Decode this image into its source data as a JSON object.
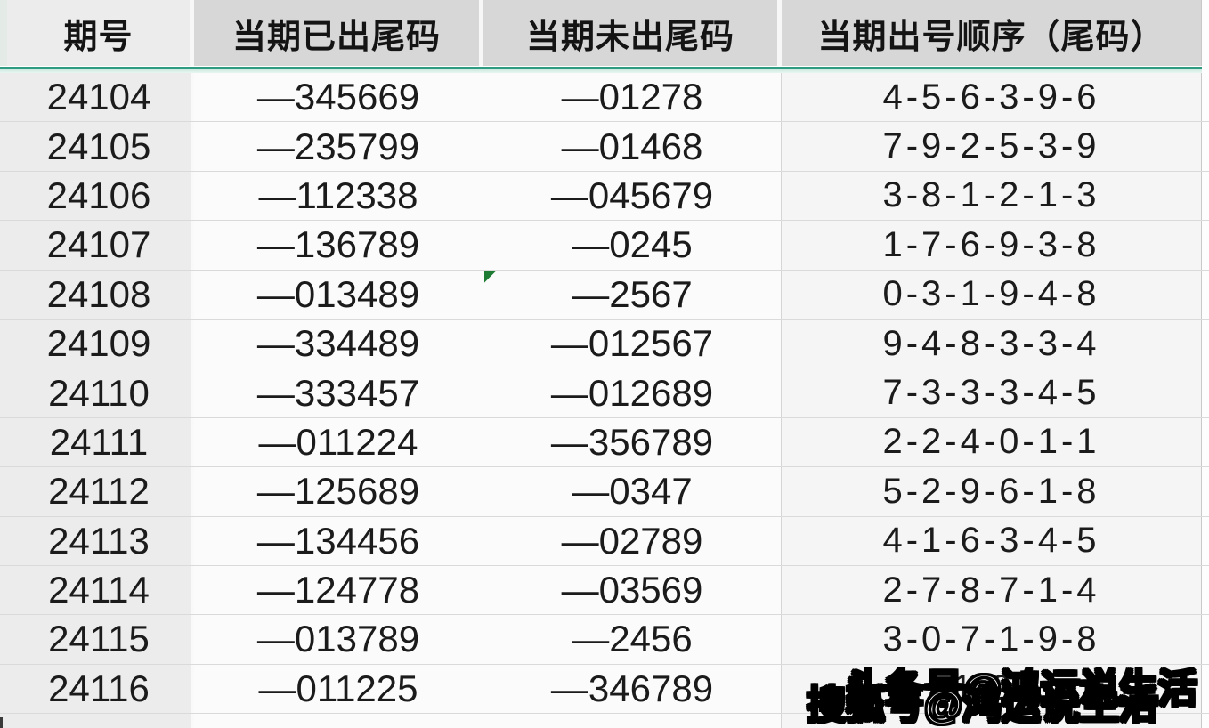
{
  "table": {
    "columns": [
      {
        "key": "period",
        "label": "期号"
      },
      {
        "key": "appeared",
        "label": "当期已出尾码"
      },
      {
        "key": "missing",
        "label": "当期未出尾码"
      },
      {
        "key": "order",
        "label": "当期出号顺序（尾码）"
      }
    ],
    "rows": [
      {
        "period": "24104",
        "appeared": "—345669",
        "missing": "—01278",
        "order": "4-5-6-3-9-6"
      },
      {
        "period": "24105",
        "appeared": "—235799",
        "missing": "—01468",
        "order": "7-9-2-5-3-9"
      },
      {
        "period": "24106",
        "appeared": "—112338",
        "missing": "—045679",
        "order": "3-8-1-2-1-3"
      },
      {
        "period": "24107",
        "appeared": "—136789",
        "missing": "—0245",
        "order": "1-7-6-9-3-8"
      },
      {
        "period": "24108",
        "appeared": "—013489",
        "missing": "—2567",
        "order": "0-3-1-9-4-8"
      },
      {
        "period": "24109",
        "appeared": "—334489",
        "missing": "—012567",
        "order": "9-4-8-3-3-4"
      },
      {
        "period": "24110",
        "appeared": "—333457",
        "missing": "—012689",
        "order": "7-3-3-3-4-5"
      },
      {
        "period": "24111",
        "appeared": "—011224",
        "missing": "—356789",
        "order": "2-2-4-0-1-1"
      },
      {
        "period": "24112",
        "appeared": "—125689",
        "missing": "—0347",
        "order": "5-2-9-6-1-8"
      },
      {
        "period": "24113",
        "appeared": "—134456",
        "missing": "—02789",
        "order": "4-1-6-3-4-5"
      },
      {
        "period": "24114",
        "appeared": "—124778",
        "missing": "—03569",
        "order": "2-7-8-7-1-4"
      },
      {
        "period": "24115",
        "appeared": "—013789",
        "missing": "—2456",
        "order": "3-0-7-1-9-8"
      },
      {
        "period": "24116",
        "appeared": "—011225",
        "missing": "—346789",
        "order": "1-2-"
      }
    ],
    "error_indicator": {
      "row_index": 4,
      "column": "missing"
    }
  },
  "watermark": {
    "front_text": "搜狐号@鸿运说生活",
    "back_text": "头条号@鸿运说生活"
  },
  "colors": {
    "header_bg": "#d7d7d7",
    "first_column_bg": "#ececec",
    "cell_bg": "#fbfbfb",
    "order_column_bg": "#f5f5f5",
    "freeze_line_teal": "#2f9b80",
    "error_indicator_green": "#1e7b33",
    "grid_line": "#d6d6d6",
    "text": "#1b1b1b"
  }
}
